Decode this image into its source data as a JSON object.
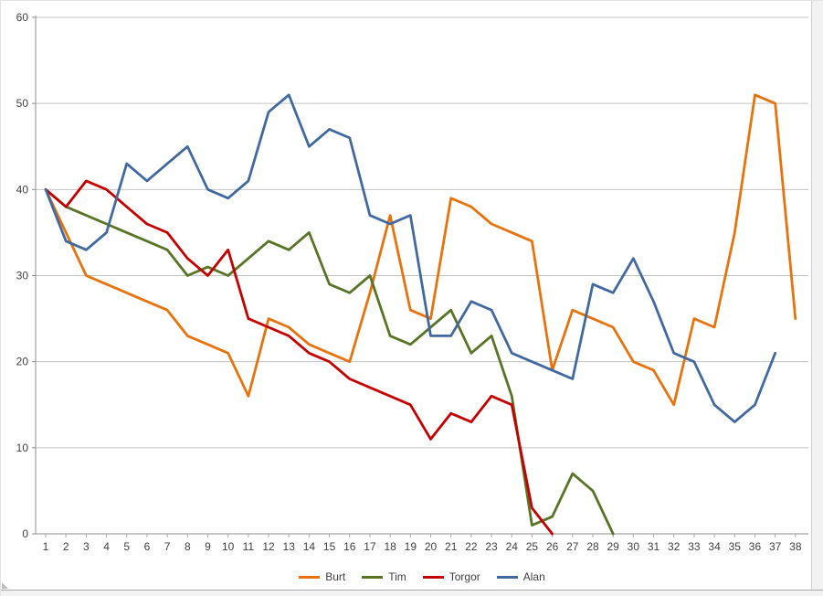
{
  "chart_data": {
    "type": "line",
    "x_labels": [
      "1",
      "2",
      "3",
      "4",
      "5",
      "6",
      "7",
      "8",
      "9",
      "10",
      "11",
      "12",
      "13",
      "14",
      "15",
      "16",
      "17",
      "18",
      "19",
      "20",
      "21",
      "22",
      "23",
      "24",
      "25",
      "26",
      "27",
      "28",
      "29",
      "30",
      "31",
      "32",
      "33",
      "34",
      "35",
      "36",
      "37",
      "38"
    ],
    "y_tick_labels": [
      "0",
      "10",
      "20",
      "30",
      "40",
      "50",
      "60"
    ],
    "ylim": [
      0,
      60
    ],
    "ytick_step": 10,
    "grid": "horizontal",
    "legend_position": "bottom",
    "series": [
      {
        "name": "Burt",
        "color": "#e8720c",
        "values": [
          40,
          35,
          30,
          29,
          28,
          27,
          26,
          23,
          22,
          21,
          16,
          25,
          24,
          22,
          21,
          20,
          28,
          37,
          26,
          25,
          39,
          38,
          36,
          35,
          34,
          19,
          26,
          25,
          24,
          20,
          19,
          15,
          25,
          24,
          35,
          51,
          50,
          25
        ]
      },
      {
        "name": "Tim",
        "color": "#597426",
        "values": [
          40,
          38,
          37,
          36,
          35,
          34,
          33,
          30,
          31,
          30,
          32,
          34,
          33,
          35,
          29,
          28,
          30,
          23,
          22,
          24,
          26,
          21,
          23,
          16,
          1,
          2,
          7,
          5,
          0
        ]
      },
      {
        "name": "Torgor",
        "color": "#c40000",
        "values": [
          40,
          38,
          41,
          40,
          38,
          36,
          35,
          32,
          30,
          33,
          25,
          24,
          23,
          21,
          20,
          18,
          17,
          16,
          15,
          11,
          14,
          13,
          16,
          15,
          3,
          0
        ]
      },
      {
        "name": "Alan",
        "color": "#41699f",
        "values": [
          40,
          34,
          33,
          35,
          43,
          41,
          43,
          45,
          40,
          39,
          41,
          49,
          51,
          45,
          47,
          46,
          37,
          36,
          37,
          23,
          23,
          27,
          26,
          21,
          20,
          19,
          18,
          29,
          28,
          32,
          27,
          21,
          20,
          15,
          13,
          15,
          21
        ]
      }
    ]
  },
  "legend": {
    "items": [
      {
        "label": "Burt",
        "color": "#e8720c"
      },
      {
        "label": "Tim",
        "color": "#597426"
      },
      {
        "label": "Torgor",
        "color": "#c40000"
      },
      {
        "label": "Alan",
        "color": "#41699f"
      }
    ]
  },
  "colors": {
    "gridline": "#c3c3c3",
    "axis": "#8e8e8e",
    "tick": "#a9a9a9",
    "label": "#3f3f3f"
  }
}
